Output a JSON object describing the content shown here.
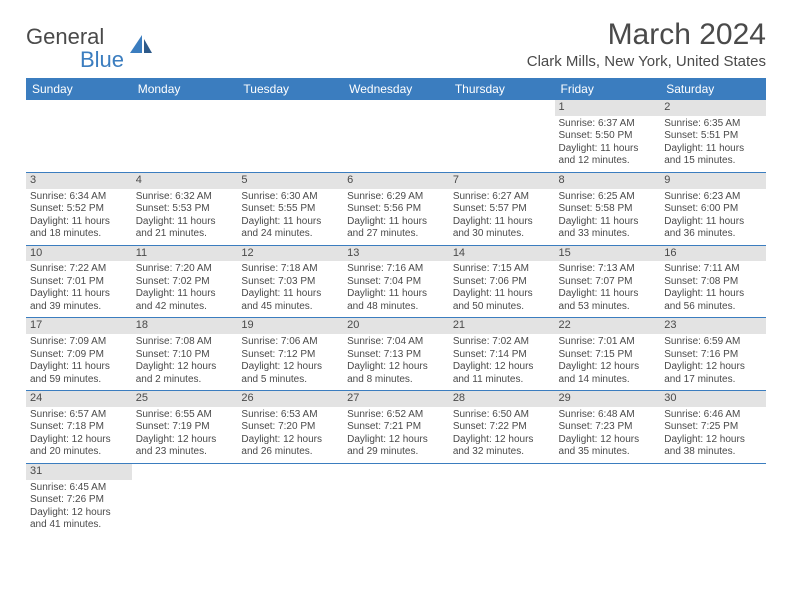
{
  "logo": {
    "text1": "Genera",
    "text2": "l",
    "text3": "Blue"
  },
  "title": "March 2024",
  "location": "Clark Mills, New York, United States",
  "colors": {
    "header_bg": "#3b7dbf",
    "header_text": "#ffffff",
    "daynum_bg": "#e3e3e3",
    "text": "#4a4a4a",
    "row_border": "#3b7dbf",
    "page_bg": "#ffffff",
    "logo_blue": "#3b7dbf"
  },
  "typography": {
    "title_fontsize": 30,
    "location_fontsize": 15,
    "th_fontsize": 12,
    "cell_fontsize": 10,
    "logo_fontsize": 22
  },
  "weekdays": [
    "Sunday",
    "Monday",
    "Tuesday",
    "Wednesday",
    "Thursday",
    "Friday",
    "Saturday"
  ],
  "weeks": [
    [
      null,
      null,
      null,
      null,
      null,
      {
        "n": "1",
        "sunrise": "Sunrise: 6:37 AM",
        "sunset": "Sunset: 5:50 PM",
        "daylight": "Daylight: 11 hours and 12 minutes."
      },
      {
        "n": "2",
        "sunrise": "Sunrise: 6:35 AM",
        "sunset": "Sunset: 5:51 PM",
        "daylight": "Daylight: 11 hours and 15 minutes."
      }
    ],
    [
      {
        "n": "3",
        "sunrise": "Sunrise: 6:34 AM",
        "sunset": "Sunset: 5:52 PM",
        "daylight": "Daylight: 11 hours and 18 minutes."
      },
      {
        "n": "4",
        "sunrise": "Sunrise: 6:32 AM",
        "sunset": "Sunset: 5:53 PM",
        "daylight": "Daylight: 11 hours and 21 minutes."
      },
      {
        "n": "5",
        "sunrise": "Sunrise: 6:30 AM",
        "sunset": "Sunset: 5:55 PM",
        "daylight": "Daylight: 11 hours and 24 minutes."
      },
      {
        "n": "6",
        "sunrise": "Sunrise: 6:29 AM",
        "sunset": "Sunset: 5:56 PM",
        "daylight": "Daylight: 11 hours and 27 minutes."
      },
      {
        "n": "7",
        "sunrise": "Sunrise: 6:27 AM",
        "sunset": "Sunset: 5:57 PM",
        "daylight": "Daylight: 11 hours and 30 minutes."
      },
      {
        "n": "8",
        "sunrise": "Sunrise: 6:25 AM",
        "sunset": "Sunset: 5:58 PM",
        "daylight": "Daylight: 11 hours and 33 minutes."
      },
      {
        "n": "9",
        "sunrise": "Sunrise: 6:23 AM",
        "sunset": "Sunset: 6:00 PM",
        "daylight": "Daylight: 11 hours and 36 minutes."
      }
    ],
    [
      {
        "n": "10",
        "sunrise": "Sunrise: 7:22 AM",
        "sunset": "Sunset: 7:01 PM",
        "daylight": "Daylight: 11 hours and 39 minutes."
      },
      {
        "n": "11",
        "sunrise": "Sunrise: 7:20 AM",
        "sunset": "Sunset: 7:02 PM",
        "daylight": "Daylight: 11 hours and 42 minutes."
      },
      {
        "n": "12",
        "sunrise": "Sunrise: 7:18 AM",
        "sunset": "Sunset: 7:03 PM",
        "daylight": "Daylight: 11 hours and 45 minutes."
      },
      {
        "n": "13",
        "sunrise": "Sunrise: 7:16 AM",
        "sunset": "Sunset: 7:04 PM",
        "daylight": "Daylight: 11 hours and 48 minutes."
      },
      {
        "n": "14",
        "sunrise": "Sunrise: 7:15 AM",
        "sunset": "Sunset: 7:06 PM",
        "daylight": "Daylight: 11 hours and 50 minutes."
      },
      {
        "n": "15",
        "sunrise": "Sunrise: 7:13 AM",
        "sunset": "Sunset: 7:07 PM",
        "daylight": "Daylight: 11 hours and 53 minutes."
      },
      {
        "n": "16",
        "sunrise": "Sunrise: 7:11 AM",
        "sunset": "Sunset: 7:08 PM",
        "daylight": "Daylight: 11 hours and 56 minutes."
      }
    ],
    [
      {
        "n": "17",
        "sunrise": "Sunrise: 7:09 AM",
        "sunset": "Sunset: 7:09 PM",
        "daylight": "Daylight: 11 hours and 59 minutes."
      },
      {
        "n": "18",
        "sunrise": "Sunrise: 7:08 AM",
        "sunset": "Sunset: 7:10 PM",
        "daylight": "Daylight: 12 hours and 2 minutes."
      },
      {
        "n": "19",
        "sunrise": "Sunrise: 7:06 AM",
        "sunset": "Sunset: 7:12 PM",
        "daylight": "Daylight: 12 hours and 5 minutes."
      },
      {
        "n": "20",
        "sunrise": "Sunrise: 7:04 AM",
        "sunset": "Sunset: 7:13 PM",
        "daylight": "Daylight: 12 hours and 8 minutes."
      },
      {
        "n": "21",
        "sunrise": "Sunrise: 7:02 AM",
        "sunset": "Sunset: 7:14 PM",
        "daylight": "Daylight: 12 hours and 11 minutes."
      },
      {
        "n": "22",
        "sunrise": "Sunrise: 7:01 AM",
        "sunset": "Sunset: 7:15 PM",
        "daylight": "Daylight: 12 hours and 14 minutes."
      },
      {
        "n": "23",
        "sunrise": "Sunrise: 6:59 AM",
        "sunset": "Sunset: 7:16 PM",
        "daylight": "Daylight: 12 hours and 17 minutes."
      }
    ],
    [
      {
        "n": "24",
        "sunrise": "Sunrise: 6:57 AM",
        "sunset": "Sunset: 7:18 PM",
        "daylight": "Daylight: 12 hours and 20 minutes."
      },
      {
        "n": "25",
        "sunrise": "Sunrise: 6:55 AM",
        "sunset": "Sunset: 7:19 PM",
        "daylight": "Daylight: 12 hours and 23 minutes."
      },
      {
        "n": "26",
        "sunrise": "Sunrise: 6:53 AM",
        "sunset": "Sunset: 7:20 PM",
        "daylight": "Daylight: 12 hours and 26 minutes."
      },
      {
        "n": "27",
        "sunrise": "Sunrise: 6:52 AM",
        "sunset": "Sunset: 7:21 PM",
        "daylight": "Daylight: 12 hours and 29 minutes."
      },
      {
        "n": "28",
        "sunrise": "Sunrise: 6:50 AM",
        "sunset": "Sunset: 7:22 PM",
        "daylight": "Daylight: 12 hours and 32 minutes."
      },
      {
        "n": "29",
        "sunrise": "Sunrise: 6:48 AM",
        "sunset": "Sunset: 7:23 PM",
        "daylight": "Daylight: 12 hours and 35 minutes."
      },
      {
        "n": "30",
        "sunrise": "Sunrise: 6:46 AM",
        "sunset": "Sunset: 7:25 PM",
        "daylight": "Daylight: 12 hours and 38 minutes."
      }
    ],
    [
      {
        "n": "31",
        "sunrise": "Sunrise: 6:45 AM",
        "sunset": "Sunset: 7:26 PM",
        "daylight": "Daylight: 12 hours and 41 minutes."
      },
      null,
      null,
      null,
      null,
      null,
      null
    ]
  ]
}
